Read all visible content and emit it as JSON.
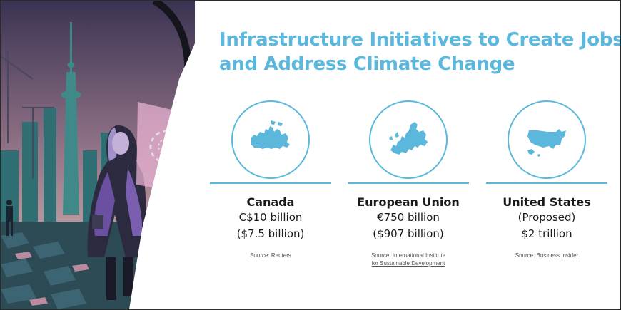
{
  "title": {
    "line1": "Infrastructure Initiatives to Create Jobs",
    "line2": "and Address Climate Change"
  },
  "columns": [
    {
      "icon": "canada-map-icon",
      "name": "Canada",
      "value_line1": "C$10 billion",
      "value_line2": "($7.5 billion)",
      "source_line1": "Source: Reuters",
      "source_line2": ""
    },
    {
      "icon": "europe-map-icon",
      "name": "European Union",
      "value_line1": "€750 billion",
      "value_line2": "($907 billion)",
      "source_line1": "Source: International Institute",
      "source_line2": "for Sustainable Development"
    },
    {
      "icon": "usa-map-icon",
      "name": "United States",
      "value_line1": "(Proposed)",
      "value_line2": "$2 trillion",
      "source_line1": "Source: Business Insider",
      "source_line2": ""
    }
  ],
  "colors": {
    "accent": "#5bb8dc",
    "map_fill": "#5bb8dc",
    "text": "#1a1a1a"
  }
}
